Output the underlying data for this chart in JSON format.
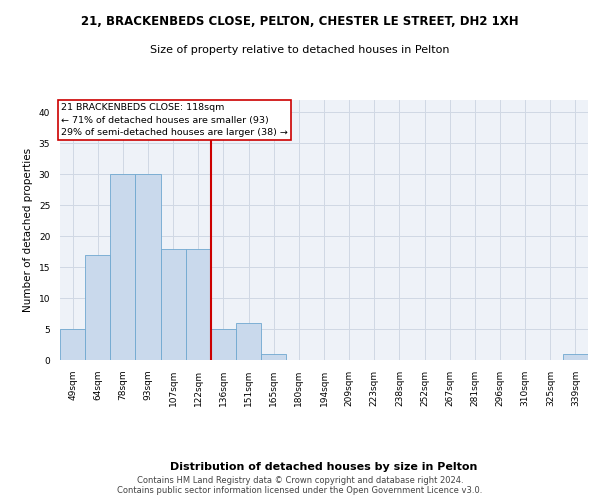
{
  "title_line1": "21, BRACKENBEDS CLOSE, PELTON, CHESTER LE STREET, DH2 1XH",
  "title_line2": "Size of property relative to detached houses in Pelton",
  "xlabel": "Distribution of detached houses by size in Pelton",
  "ylabel": "Number of detached properties",
  "categories": [
    "49sqm",
    "64sqm",
    "78sqm",
    "93sqm",
    "107sqm",
    "122sqm",
    "136sqm",
    "151sqm",
    "165sqm",
    "180sqm",
    "194sqm",
    "209sqm",
    "223sqm",
    "238sqm",
    "252sqm",
    "267sqm",
    "281sqm",
    "296sqm",
    "310sqm",
    "325sqm",
    "339sqm"
  ],
  "values": [
    5,
    17,
    30,
    30,
    18,
    18,
    5,
    6,
    1,
    0,
    0,
    0,
    0,
    0,
    0,
    0,
    0,
    0,
    0,
    0,
    1
  ],
  "bar_color": "#c9d9ec",
  "bar_edge_color": "#6fa8d0",
  "grid_color": "#d0d8e4",
  "vline_x": 5.5,
  "vline_color": "#cc0000",
  "annotation_text": "21 BRACKENBEDS CLOSE: 118sqm\n← 71% of detached houses are smaller (93)\n29% of semi-detached houses are larger (38) →",
  "annotation_box_color": "white",
  "annotation_box_edge": "#cc0000",
  "ylim": [
    0,
    42
  ],
  "yticks": [
    0,
    5,
    10,
    15,
    20,
    25,
    30,
    35,
    40
  ],
  "footer": "Contains HM Land Registry data © Crown copyright and database right 2024.\nContains public sector information licensed under the Open Government Licence v3.0.",
  "bg_color": "#eef2f8",
  "title1_fontsize": 8.5,
  "title2_fontsize": 8.0,
  "ylabel_fontsize": 7.5,
  "xlabel_fontsize": 8.0,
  "tick_fontsize": 6.5,
  "annotation_fontsize": 6.8,
  "footer_fontsize": 6.0
}
